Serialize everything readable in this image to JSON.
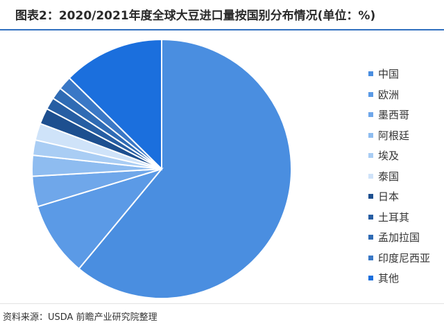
{
  "title": "图表2：2020/2021年度全球大豆进口量按国别分布情况(单位：%)",
  "source": "资料来源：USDA 前瞻产业研究院整理",
  "chart_data": {
    "type": "pie",
    "title": "图表2：2020/2021年度全球大豆进口量按国别分布情况(单位：%)",
    "start_angle": "12 o'clock, clockwise",
    "legend_position": "right",
    "slices": [
      {
        "label": "中国",
        "value": 61.0,
        "color": "#4a8ee0"
      },
      {
        "label": "欧洲",
        "value": 9.3,
        "color": "#5b9ae6"
      },
      {
        "label": "墨西哥",
        "value": 3.8,
        "color": "#6fa7ea"
      },
      {
        "label": "阿根廷",
        "value": 2.6,
        "color": "#8ebcf0"
      },
      {
        "label": "埃及",
        "value": 1.9,
        "color": "#a9cdf4"
      },
      {
        "label": "泰国",
        "value": 2.1,
        "color": "#cfe3f9"
      },
      {
        "label": "日本",
        "value": 2.0,
        "color": "#1d4f8f"
      },
      {
        "label": "土耳其",
        "value": 1.5,
        "color": "#275ea3"
      },
      {
        "label": "孟加拉国",
        "value": 1.5,
        "color": "#2f6bb4"
      },
      {
        "label": "印度尼西亚",
        "value": 1.7,
        "color": "#3a78c6"
      },
      {
        "label": "其他",
        "value": 12.6,
        "color": "#1b6fdd"
      }
    ]
  }
}
